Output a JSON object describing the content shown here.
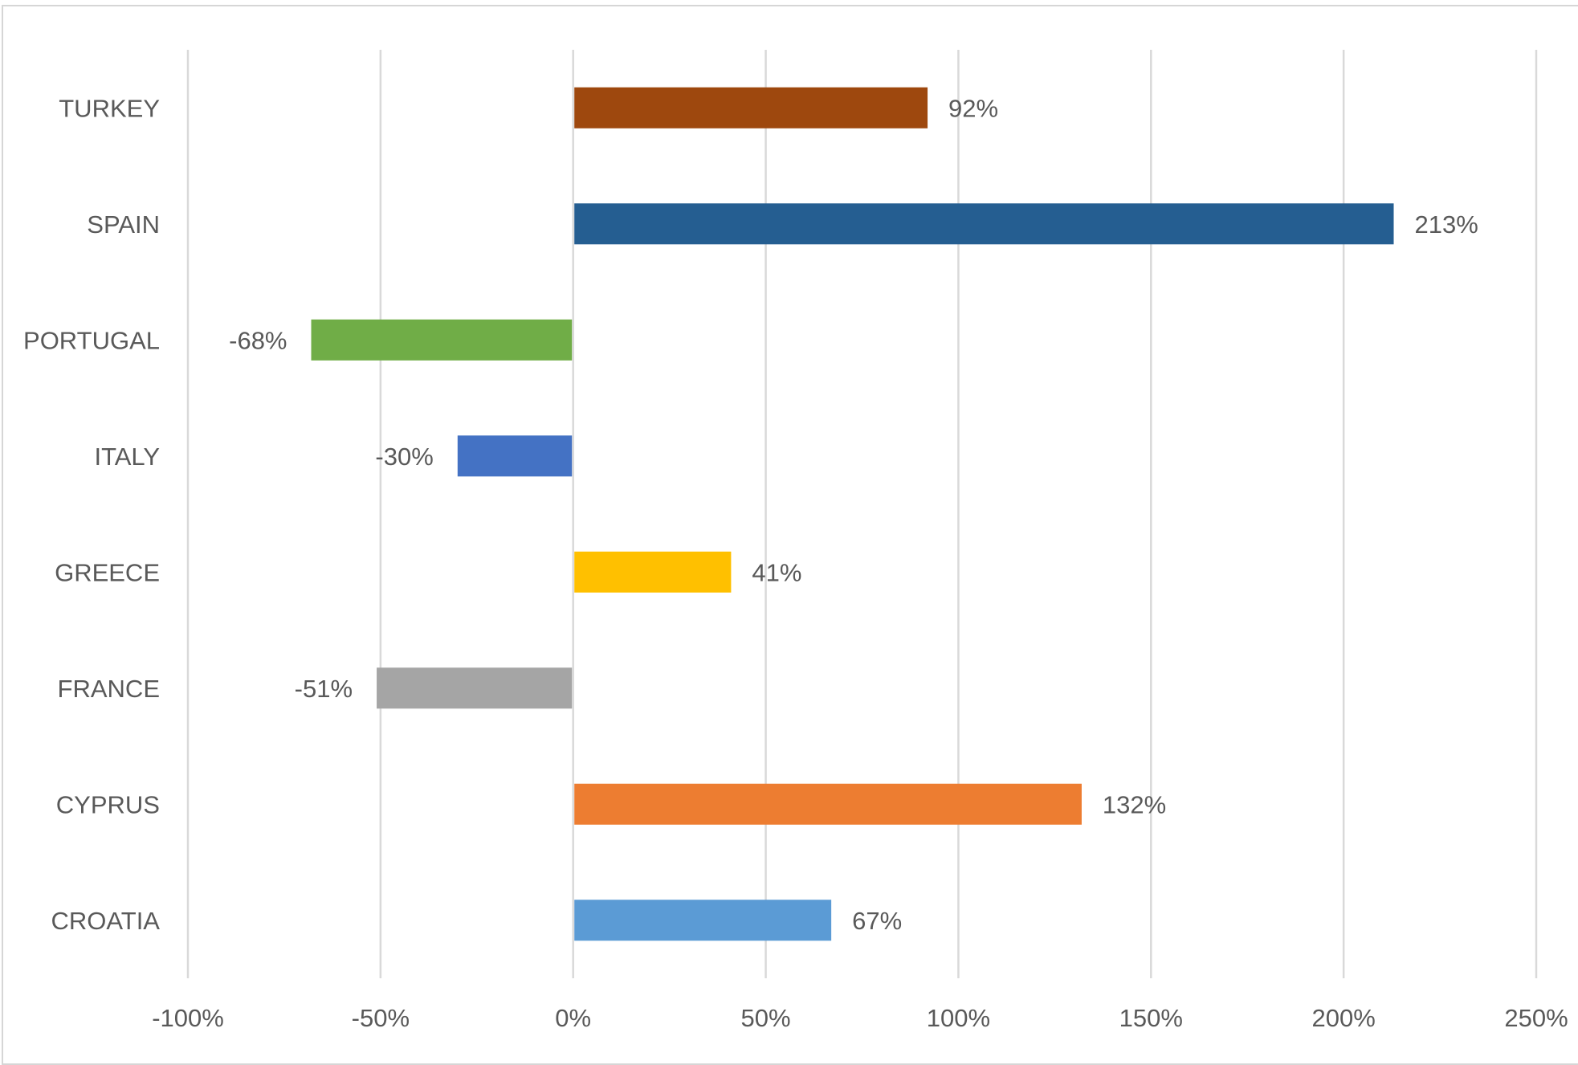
{
  "chart_data": {
    "type": "bar",
    "orientation": "horizontal",
    "title": "",
    "xlabel": "",
    "ylabel": "",
    "categories": [
      "TURKEY",
      "SPAIN",
      "PORTUGAL",
      "ITALY",
      "GREECE",
      "FRANCE",
      "CYPRUS",
      "CROATIA"
    ],
    "values": [
      92,
      213,
      -68,
      -30,
      41,
      -51,
      132,
      67
    ],
    "data_labels": [
      "92%",
      "213%",
      "-68%",
      "-30%",
      "41%",
      "-51%",
      "132%",
      "67%"
    ],
    "colors": [
      "#9E480E",
      "#255E91",
      "#70AD47",
      "#4472C4",
      "#FFC000",
      "#A5A5A5",
      "#ED7D31",
      "#5B9BD5"
    ],
    "xlim": [
      -100,
      250
    ],
    "xticks": [
      -100,
      -50,
      0,
      50,
      100,
      150,
      200,
      250
    ],
    "xtick_labels": [
      "-100%",
      "-50%",
      "0%",
      "50%",
      "100%",
      "150%",
      "200%",
      "250%"
    ],
    "grid": true,
    "gridline_color": "#d9d9d9",
    "legend": "none"
  }
}
